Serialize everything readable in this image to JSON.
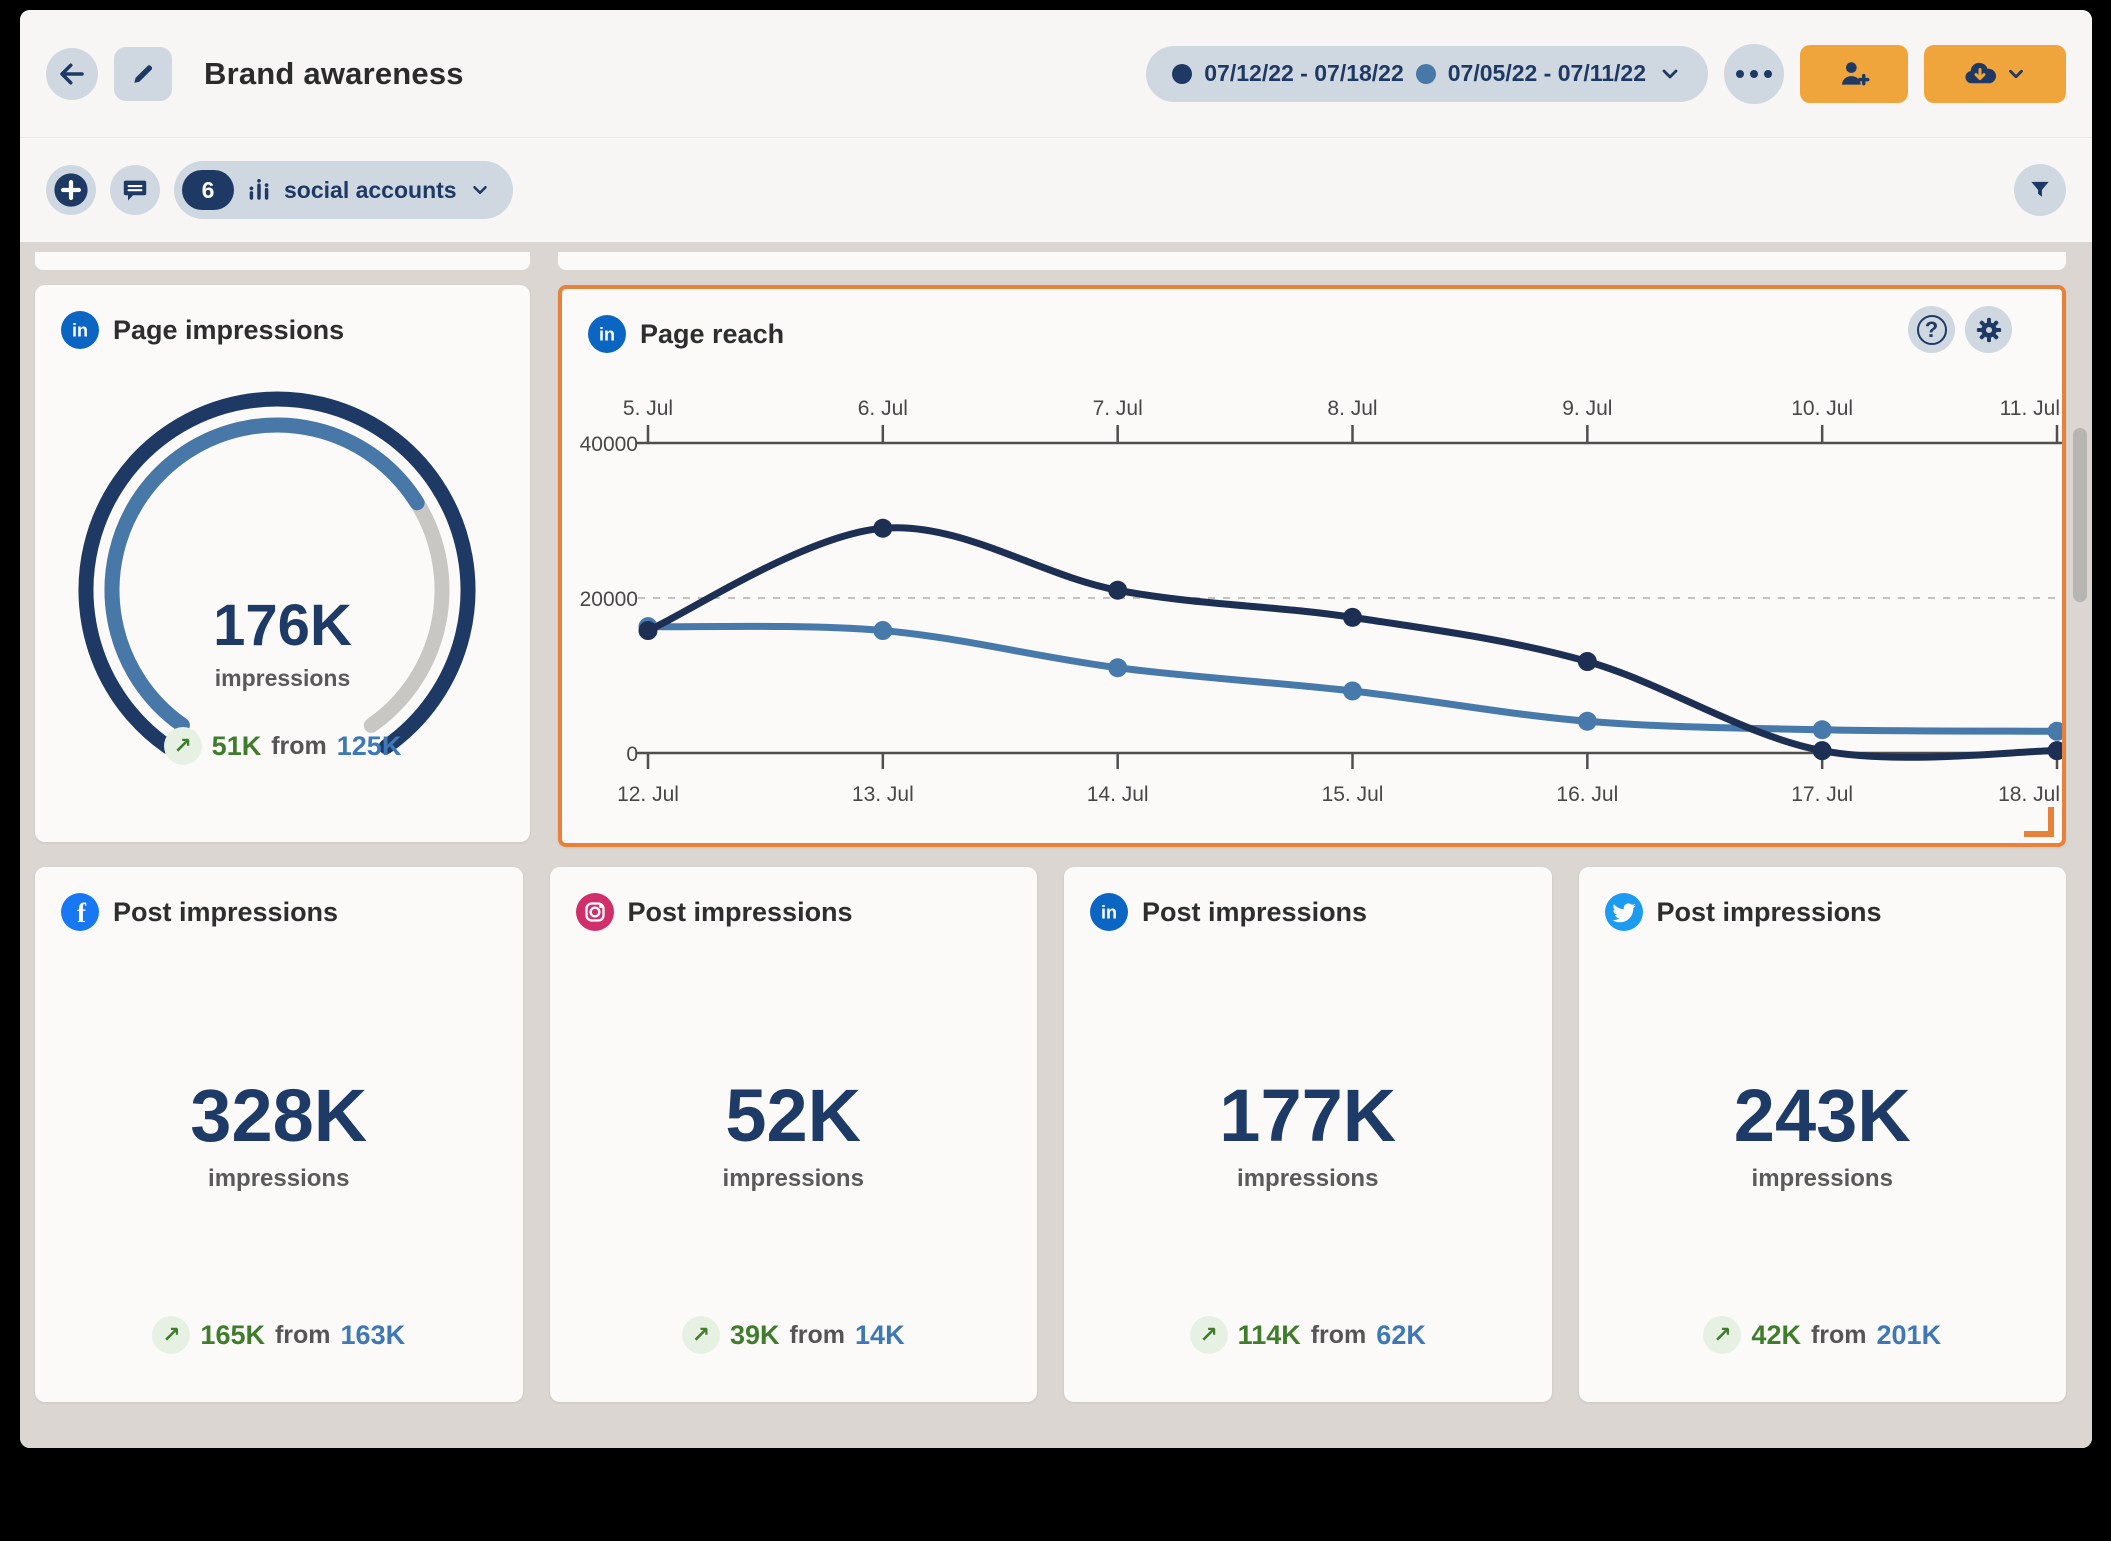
{
  "header": {
    "title": "Brand awareness",
    "date_selector": {
      "ranges": [
        {
          "label": "07/12/22 - 07/18/22",
          "dot_color": "#1e3a64"
        },
        {
          "label": "07/05/22 - 07/11/22",
          "dot_color": "#4878a8"
        }
      ]
    }
  },
  "toolbar": {
    "accounts_count": "6",
    "accounts_label": "social accounts"
  },
  "colors": {
    "accent_orange": "#f0a53c",
    "selection_border": "#e8813a",
    "navy": "#1e3a64",
    "positive_green": "#3f7d2c",
    "previous_blue": "#3e78b5"
  },
  "page_impressions_card": {
    "network": "linkedin",
    "icon": "linkedin-icon",
    "title": "Page impressions",
    "value": "176K",
    "unit": "impressions",
    "delta": "51K",
    "from_label": "from",
    "previous": "125K",
    "gauge": {
      "percent": 70,
      "outer_color": "#1e3a64",
      "progress_color": "#4878a8",
      "track_color": "#c9c7c4"
    }
  },
  "page_reach_card": {
    "network": "linkedin",
    "icon": "linkedin-icon",
    "title": "Page reach"
  },
  "post_impressions_cards": [
    {
      "network": "facebook",
      "icon": "facebook-icon",
      "title": "Post impressions",
      "value": "328K",
      "unit": "impressions",
      "delta": "165K",
      "from_label": "from",
      "previous": "163K"
    },
    {
      "network": "instagram",
      "icon": "instagram-icon",
      "title": "Post impressions",
      "value": "52K",
      "unit": "impressions",
      "delta": "39K",
      "from_label": "from",
      "previous": "14K"
    },
    {
      "network": "linkedin",
      "icon": "linkedin-icon",
      "title": "Post impressions",
      "value": "177K",
      "unit": "impressions",
      "delta": "114K",
      "from_label": "from",
      "previous": "62K"
    },
    {
      "network": "twitter",
      "icon": "twitter-icon",
      "title": "Post impressions",
      "value": "243K",
      "unit": "impressions",
      "delta": "42K",
      "from_label": "from",
      "previous": "201K"
    }
  ],
  "chart_data": {
    "type": "line",
    "title": "Page reach",
    "x_labels_top": [
      "5. Jul",
      "6. Jul",
      "7. Jul",
      "8. Jul",
      "9. Jul",
      "10. Jul",
      "11. Jul"
    ],
    "x_labels_bottom": [
      "12. Jul",
      "13. Jul",
      "14. Jul",
      "15. Jul",
      "16. Jul",
      "17. Jul",
      "18. Jul"
    ],
    "y_ticks": [
      "0",
      "20000",
      "40000"
    ],
    "ylim": [
      0,
      40000
    ],
    "grid_dashed_at": 20000,
    "legend_position": "header-date-pill",
    "series": [
      {
        "name": "07/05/22 - 07/11/22",
        "color": "#4879ab",
        "values": [
          16300,
          15800,
          11000,
          8000,
          4100,
          3000,
          2800
        ]
      },
      {
        "name": "07/12/22 - 07/18/22",
        "color": "#1d2f52",
        "values": [
          15800,
          29000,
          21000,
          17500,
          11800,
          300,
          300
        ]
      }
    ]
  }
}
